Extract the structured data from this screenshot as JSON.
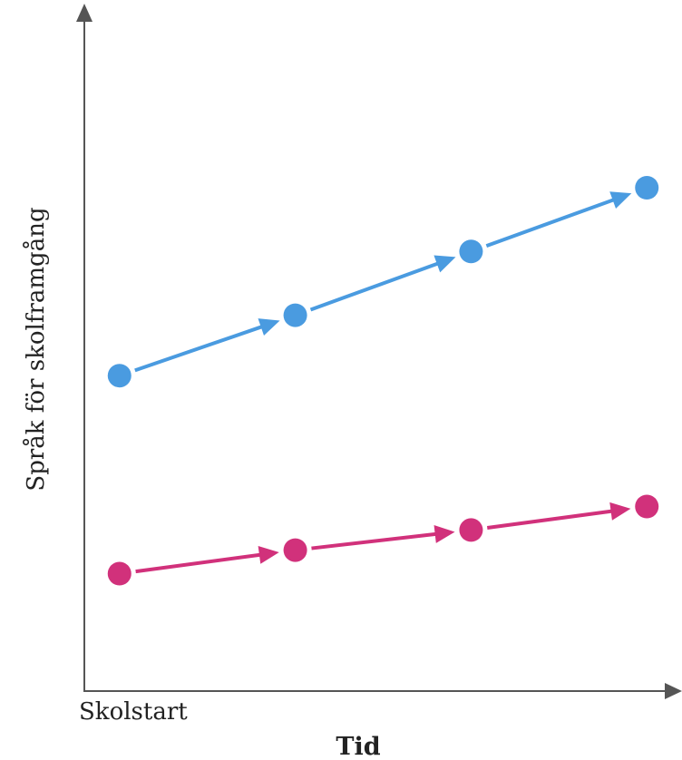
{
  "chart_data": {
    "type": "line",
    "xlabel": "Tid",
    "ylabel": "Språk för skolframgång",
    "x_start_label": "Skolstart",
    "x": [
      1,
      2,
      3,
      4
    ],
    "ylim": [
      0,
      100
    ],
    "xlim": [
      0.8,
      4.2
    ],
    "grid": false,
    "series": [
      {
        "color": "#4a9be0",
        "values": [
          47,
          56,
          65.5,
          75
        ]
      },
      {
        "color": "#d1317b",
        "values": [
          17.5,
          21,
          24,
          27.5
        ]
      }
    ]
  }
}
